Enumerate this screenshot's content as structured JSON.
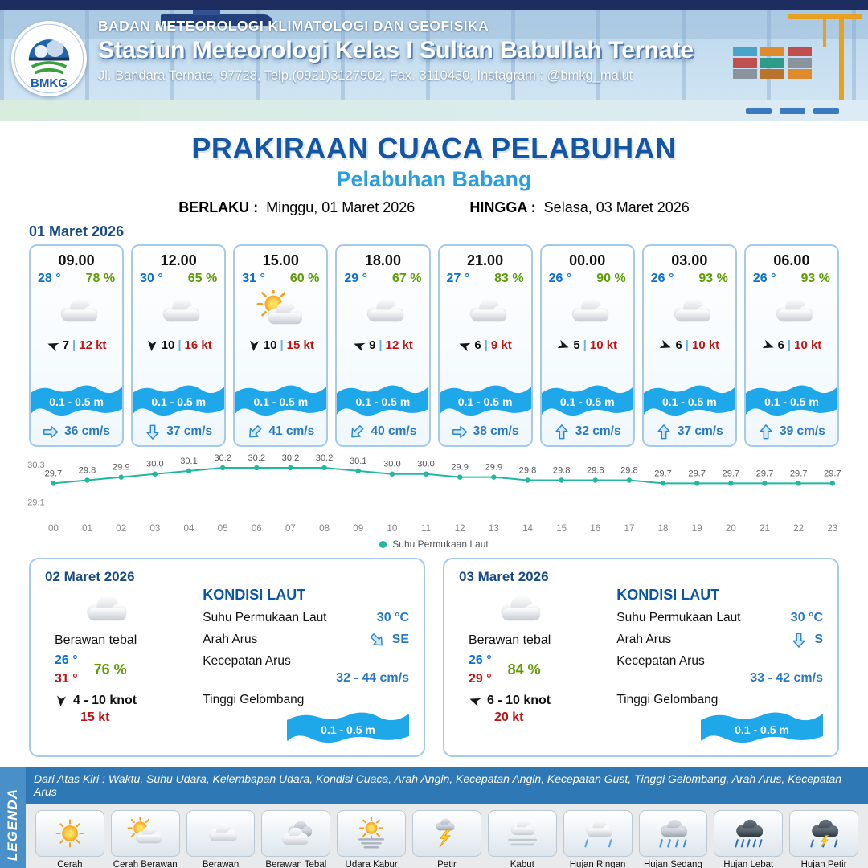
{
  "header": {
    "logo": "BMKG",
    "agency": "BADAN METEOROLOGI KLIMATOLOGI DAN GEOFISIKA",
    "station": "Stasiun Meteorologi Kelas I Sultan Babullah Ternate",
    "address": "Jl. Bandara Ternate, 97728, Telp.(0921)3127902, Fax. 3110430, Instagram : @bmkg_malut"
  },
  "title": {
    "main": "PRAKIRAAN CUACA PELABUHAN",
    "subtitle": "Pelabuhan Babang",
    "valid_from_label": "BERLAKU :",
    "valid_from": "Minggu, 01 Maret 2026",
    "valid_to_label": "HINGGA :",
    "valid_to": "Selasa, 03 Maret 2026"
  },
  "day1": {
    "date": "01 Maret 2026",
    "cards": [
      {
        "time": "09.00",
        "temp": "28 °",
        "humidity": "78 %",
        "icon": "cloud",
        "wind_rot": 200,
        "wind_speed": "7",
        "gust": "12 kt",
        "wave": "0.1 - 0.5 m",
        "current_rot": 0,
        "current": "36 cm/s"
      },
      {
        "time": "12.00",
        "temp": "30 °",
        "humidity": "65 %",
        "icon": "cloud",
        "wind_rot": 95,
        "wind_speed": "10",
        "gust": "16 kt",
        "wave": "0.1 - 0.5 m",
        "current_rot": 90,
        "current": "37 cm/s"
      },
      {
        "time": "15.00",
        "temp": "31 °",
        "humidity": "60 %",
        "icon": "sun-cloud",
        "wind_rot": 95,
        "wind_speed": "10",
        "gust": "15 kt",
        "wave": "0.1 - 0.5 m",
        "current_rot": 135,
        "current": "41 cm/s"
      },
      {
        "time": "18.00",
        "temp": "29 °",
        "humidity": "67 %",
        "icon": "cloud",
        "wind_rot": 200,
        "wind_speed": "9",
        "gust": "12 kt",
        "wave": "0.1 - 0.5 m",
        "current_rot": 135,
        "current": "40 cm/s"
      },
      {
        "time": "21.00",
        "temp": "27 °",
        "humidity": "83 %",
        "icon": "cloud",
        "wind_rot": 200,
        "wind_speed": "6",
        "gust": "9 kt",
        "wave": "0.1 - 0.5 m",
        "current_rot": 0,
        "current": "38 cm/s"
      },
      {
        "time": "00.00",
        "temp": "26 °",
        "humidity": "90 %",
        "icon": "cloud",
        "wind_rot": 20,
        "wind_speed": "5",
        "gust": "10 kt",
        "wave": "0.1 - 0.5 m",
        "current_rot": 270,
        "current": "32 cm/s"
      },
      {
        "time": "03.00",
        "temp": "26 °",
        "humidity": "93 %",
        "icon": "cloud",
        "wind_rot": 20,
        "wind_speed": "6",
        "gust": "10 kt",
        "wave": "0.1 - 0.5 m",
        "current_rot": 270,
        "current": "37 cm/s"
      },
      {
        "time": "06.00",
        "temp": "26 °",
        "humidity": "93 %",
        "icon": "cloud",
        "wind_rot": 20,
        "wind_speed": "6",
        "gust": "10 kt",
        "wave": "0.1 - 0.5 m",
        "current_rot": 270,
        "current": "39 cm/s"
      }
    ]
  },
  "chart_data": {
    "type": "line",
    "x": [
      "00",
      "01",
      "02",
      "03",
      "04",
      "05",
      "06",
      "07",
      "08",
      "09",
      "10",
      "11",
      "12",
      "13",
      "14",
      "15",
      "16",
      "17",
      "18",
      "19",
      "20",
      "21",
      "22",
      "23"
    ],
    "series": [
      {
        "name": "Suhu Permukaan Laut",
        "values": [
          29.7,
          29.8,
          29.9,
          30.0,
          30.1,
          30.2,
          30.2,
          30.2,
          30.2,
          30.1,
          30.0,
          30.0,
          29.9,
          29.9,
          29.8,
          29.8,
          29.8,
          29.8,
          29.7,
          29.7,
          29.7,
          29.7,
          29.7,
          29.7
        ]
      }
    ],
    "ylim": [
      29.1,
      30.3
    ],
    "yticks": [
      "30.3",
      "29.1"
    ],
    "legend": "Suhu Permukaan Laut",
    "legend_position": "bottom",
    "grid": false,
    "line_color": "#22b8a0"
  },
  "sea_labels": {
    "title": "KONDISI LAUT",
    "sst": "Suhu Permukaan Laut",
    "current_dir": "Arah Arus",
    "current_speed": "Kecepatan Arus",
    "wave": "Tinggi Gelombang"
  },
  "day_cards": [
    {
      "date": "02 Maret 2026",
      "icon": "cloud",
      "condition": "Berawan tebal",
      "temp_min": "26 °",
      "temp_max": "31 °",
      "humidity": "76 %",
      "wind_rot": 95,
      "wind_range": "4  - 10 knot",
      "gust": "15 kt",
      "sea": {
        "sst": "30 °C",
        "current_dir": "SE",
        "current_rot": 45,
        "current_speed": "32  - 44 cm/s",
        "wave": "0.1 - 0.5 m"
      }
    },
    {
      "date": "03 Maret 2026",
      "icon": "cloud",
      "condition": "Berawan tebal",
      "temp_min": "26 °",
      "temp_max": "29 °",
      "humidity": "84 %",
      "wind_rot": 200,
      "wind_range": "6  - 10 knot",
      "gust": "20 kt",
      "sea": {
        "sst": "30 °C",
        "current_dir": "S",
        "current_rot": 90,
        "current_speed": "33  - 42 cm/s",
        "wave": "0.1 - 0.5 m"
      }
    }
  ],
  "legend": {
    "vertical_label": "LEGENDA",
    "description": "Dari Atas Kiri : Waktu, Suhu Udara, Kelembapan Udara, Kondisi Cuaca, Arah Angin, Kecepatan Angin, Kecepatan Gust, Tinggi Gelombang, Arah Arus, Kecepatan Arus",
    "items": [
      {
        "label": "Cerah",
        "icon": "sun"
      },
      {
        "label": "Cerah Berawan",
        "icon": "sun-cloud"
      },
      {
        "label": "Berawan",
        "icon": "cloud"
      },
      {
        "label": "Berawan Tebal",
        "icon": "cloud-thick"
      },
      {
        "label": "Udara Kabur",
        "icon": "haze"
      },
      {
        "label": "Petir",
        "icon": "thunder"
      },
      {
        "label": "Kabut",
        "icon": "fog"
      },
      {
        "label": "Hujan Ringan",
        "icon": "rain-light"
      },
      {
        "label": "Hujan Sedang",
        "icon": "rain-medium"
      },
      {
        "label": "Hujan Lebat",
        "icon": "rain-heavy"
      },
      {
        "label": "Hujan Petir",
        "icon": "rain-thunder"
      }
    ]
  },
  "colors": {
    "temp_blue": "#0a6fd0",
    "humidity_green": "#5e9c06",
    "gust_red": "#c21212",
    "heading_blue": "#1456a4",
    "subtitle_blue": "#2b9fd9",
    "wave_band_blue": "#1ea7e9",
    "current_blue": "#2879c0",
    "chart_teal": "#22b8a0"
  }
}
